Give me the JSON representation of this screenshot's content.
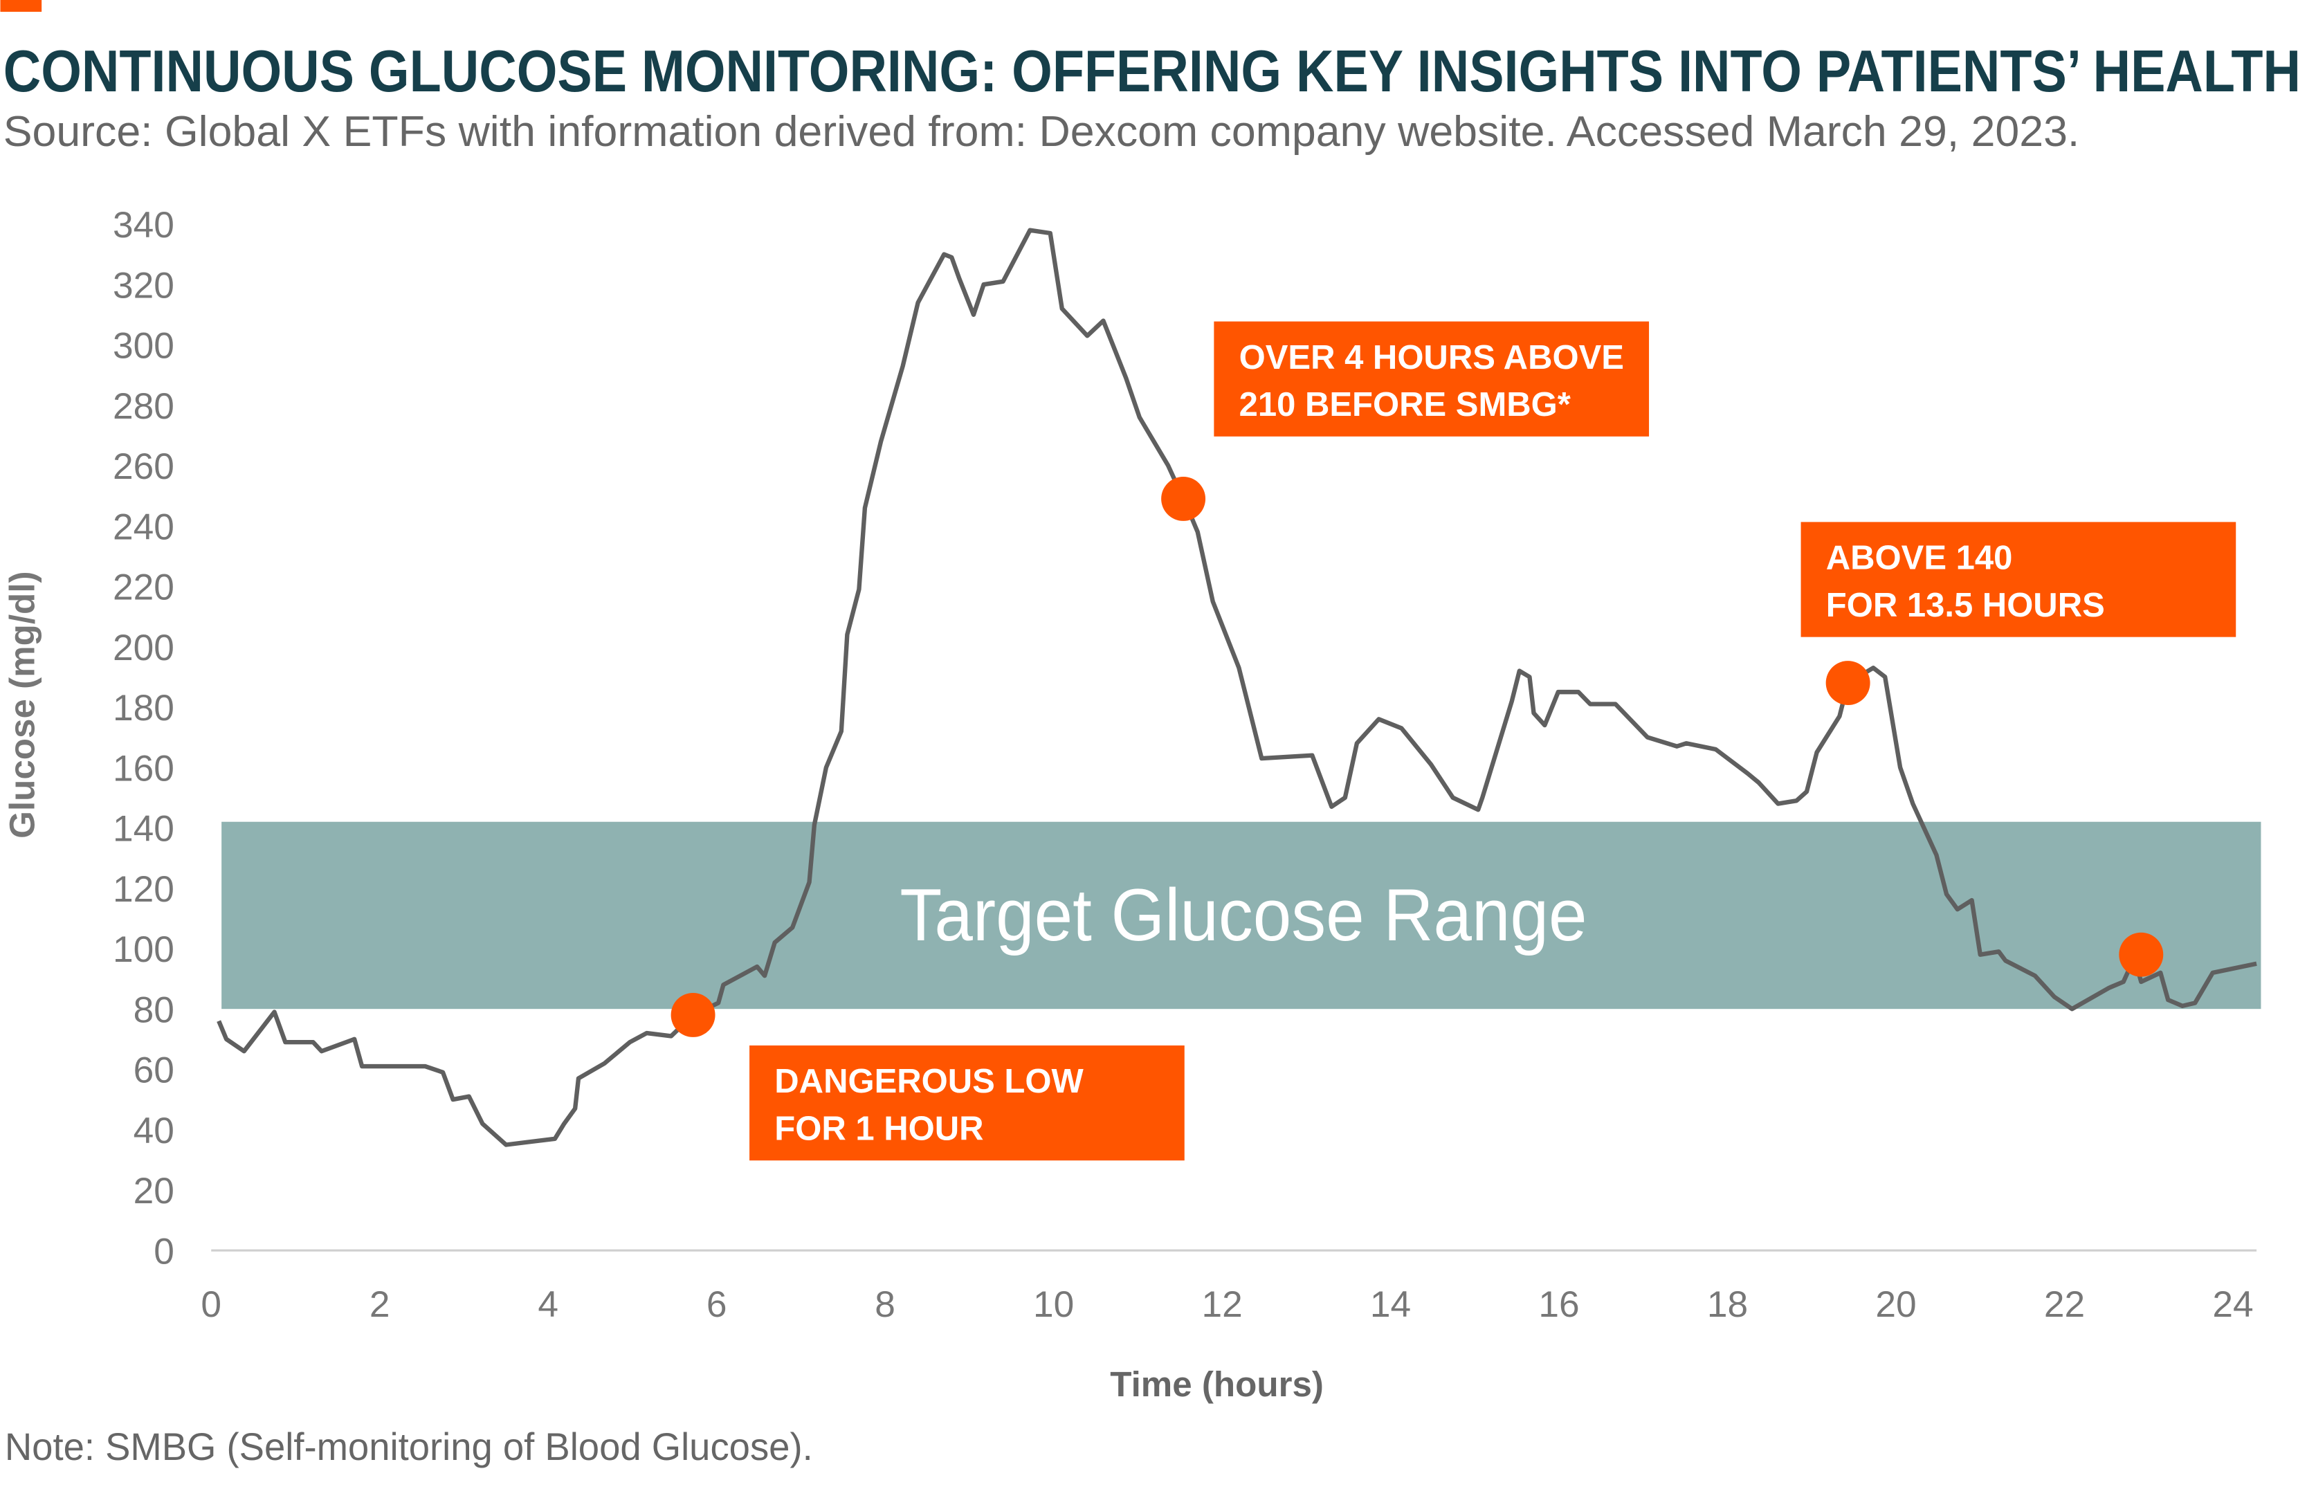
{
  "title": "CONTINUOUS GLUCOSE MONITORING: OFFERING KEY INSIGHTS INTO PATIENTS’ HEALTH",
  "subtitle": "Source: Global X ETFs with information derived from: Dexcom company website. Accessed March 29, 2023.",
  "note": "Note: SMBG (Self-monitoring of Blood Glucose).",
  "colors": {
    "accent": "#ff5500",
    "title": "#163f4a",
    "band": "#8fb2b1",
    "line": "#5f5f5f",
    "text": "#777777"
  },
  "chart_data": {
    "type": "line",
    "xlabel": "Time (hours)",
    "ylabel": "Glucose (mg/dl)",
    "xlim": [
      0,
      24
    ],
    "ylim": [
      0,
      340
    ],
    "xticks": [
      0,
      2,
      4,
      6,
      8,
      10,
      12,
      14,
      16,
      18,
      20,
      22,
      24
    ],
    "yticks": [
      0,
      20,
      40,
      60,
      80,
      100,
      120,
      140,
      160,
      180,
      200,
      220,
      240,
      260,
      280,
      300,
      320,
      340
    ],
    "grid": false,
    "target_band": {
      "label": "Target Glucose Range",
      "low": 80,
      "high": 142
    },
    "series": [
      {
        "x": [
          0.09,
          0.18,
          0.39,
          0.75,
          0.88,
          1.21,
          1.31,
          1.7,
          1.79,
          2.54,
          2.75,
          2.87,
          3.06,
          3.22,
          3.5,
          4.08,
          4.19,
          4.32,
          4.36,
          4.67,
          4.97,
          5.17,
          5.46,
          5.72,
          6.02,
          6.08,
          6.48,
          6.57,
          6.69,
          6.9,
          7.1,
          7.16,
          7.3,
          7.48,
          7.55,
          7.69,
          7.76,
          7.95,
          8.21,
          8.39,
          8.7,
          8.79,
          8.88,
          9.05,
          9.17,
          9.4,
          9.72,
          9.96,
          10.1,
          10.4,
          10.59,
          10.86,
          11.02,
          11.36,
          11.59,
          11.71,
          11.89,
          12.2,
          12.47,
          13.07,
          13.3,
          13.46,
          13.6,
          13.86,
          14.13,
          14.48,
          14.74,
          15.04,
          15.09,
          15.44,
          15.53,
          15.65,
          15.7,
          15.83,
          15.99,
          16.23,
          16.37,
          16.67,
          17.05,
          17.4,
          17.51,
          17.86,
          18.24,
          18.37,
          18.6,
          18.82,
          18.94,
          19.06,
          19.33,
          19.43,
          19.73,
          19.87,
          20.05,
          20.2,
          20.48,
          20.6,
          20.73,
          20.9,
          21.0,
          21.22,
          21.3,
          21.65,
          21.88,
          22.09,
          22.53,
          22.7,
          22.83,
          22.91,
          23.14,
          23.23,
          23.4,
          23.55,
          23.76,
          24.28
        ],
        "y": [
          76,
          70,
          66,
          79,
          69,
          69,
          66,
          70,
          61,
          61,
          59,
          50,
          51,
          42,
          35,
          37,
          42,
          47,
          57,
          62,
          69,
          72,
          71,
          78,
          82,
          88,
          94,
          91,
          102,
          107,
          122,
          141,
          160,
          172,
          204,
          219,
          246,
          268,
          293,
          314,
          330,
          329,
          322,
          310,
          320,
          321,
          338,
          337,
          312,
          303,
          308,
          289,
          276,
          260,
          246,
          238,
          215,
          193,
          163,
          164,
          147,
          150,
          168,
          176,
          173,
          161,
          150,
          146,
          150,
          182,
          192,
          190,
          178,
          174,
          185,
          185,
          181,
          181,
          170,
          167,
          168,
          166,
          158,
          155,
          148,
          149,
          152,
          165,
          177,
          188,
          193,
          190,
          160,
          148,
          131,
          118,
          113,
          116,
          98,
          99,
          96,
          91,
          84,
          80,
          87,
          89,
          97,
          89,
          92,
          83,
          81,
          82,
          92,
          95
        ]
      }
    ],
    "markers": [
      {
        "x": 5.72,
        "y": 78,
        "annotation": [
          "DANGEROUS LOW",
          "FOR 1 HOUR"
        ]
      },
      {
        "x": 11.54,
        "y": 249,
        "annotation": [
          "OVER 4 HOURS ABOVE",
          "210 BEFORE SMBG*"
        ]
      },
      {
        "x": 19.43,
        "y": 188,
        "annotation": [
          "ABOVE 140",
          "FOR 13.5 HOURS"
        ]
      },
      {
        "x": 22.91,
        "y": 98,
        "annotation": []
      }
    ]
  }
}
